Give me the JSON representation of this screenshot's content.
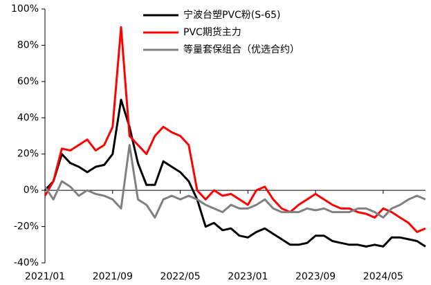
{
  "chart_data": {
    "type": "line",
    "categories": [
      "2021/01",
      null,
      null,
      null,
      null,
      null,
      null,
      null,
      "2021/09",
      null,
      null,
      null,
      null,
      null,
      null,
      null,
      "2022/05",
      null,
      null,
      null,
      null,
      null,
      null,
      null,
      "2023/01",
      null,
      null,
      null,
      null,
      null,
      null,
      null,
      "2023/09",
      null,
      null,
      null,
      null,
      null,
      null,
      null,
      "2024/05",
      null,
      null,
      null,
      null,
      null
    ],
    "series": [
      {
        "name": "宁波台塑PVC粉(S-65)",
        "color": "#000000",
        "values": [
          0,
          5,
          20,
          15,
          13,
          10,
          13,
          14,
          20,
          50,
          35,
          15,
          3,
          3,
          16,
          13,
          10,
          5,
          -5,
          -20,
          -18,
          -22,
          -21,
          -25,
          -26,
          -23,
          -21,
          -24,
          -27,
          -30,
          -30,
          -29,
          -25,
          -25,
          -28,
          -29,
          -30,
          -30,
          -31,
          -30,
          -31,
          -26,
          -26,
          -27,
          -28,
          -31
        ]
      },
      {
        "name": "PVC期货主力",
        "color": "#ff0000",
        "values": [
          -3,
          5,
          23,
          22,
          25,
          28,
          22,
          25,
          35,
          90,
          30,
          25,
          20,
          30,
          35,
          32,
          30,
          25,
          0,
          -5,
          0,
          -3,
          -2,
          -5,
          -8,
          0,
          2,
          -5,
          -10,
          -12,
          -8,
          -5,
          -2,
          -5,
          -8,
          -10,
          -10,
          -12,
          -13,
          -15,
          -10,
          -12,
          -15,
          -18,
          -23,
          -21
        ]
      },
      {
        "name": "等量套保组合（优选合约）",
        "color": "#808080",
        "values": [
          2,
          -5,
          5,
          2,
          -3,
          0,
          -2,
          -3,
          -5,
          -10,
          25,
          -5,
          -8,
          -15,
          -5,
          -3,
          -5,
          -3,
          -5,
          -8,
          -10,
          -12,
          -8,
          -10,
          -10,
          -8,
          -5,
          -10,
          -12,
          -12,
          -12,
          -10,
          -11,
          -10,
          -12,
          -12,
          -12,
          -10,
          -10,
          -12,
          -15,
          -10,
          -8,
          -5,
          -3,
          -5
        ]
      }
    ],
    "ylim": [
      -40,
      100
    ],
    "yticks": [
      {
        "value": -40,
        "label": "-40%"
      },
      {
        "value": -20,
        "label": "-20%"
      },
      {
        "value": 0,
        "label": "0%"
      },
      {
        "value": 20,
        "label": "20%"
      },
      {
        "value": 40,
        "label": "40%"
      },
      {
        "value": 60,
        "label": "60%"
      },
      {
        "value": 80,
        "label": "80%"
      },
      {
        "value": 100,
        "label": "100%"
      }
    ],
    "grid": false,
    "legend": "top"
  }
}
